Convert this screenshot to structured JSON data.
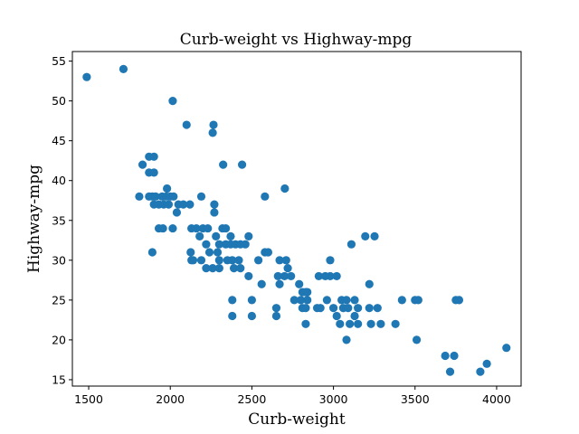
{
  "chart_data": {
    "type": "scatter",
    "title": "Curb-weight vs Highway-mpg",
    "xlabel": "Curb-weight",
    "ylabel": "Highway-mpg",
    "xlim": [
      1400,
      4150
    ],
    "ylim": [
      14.2,
      56.2
    ],
    "xticks": [
      1500,
      2000,
      2500,
      3000,
      3500,
      4000
    ],
    "yticks": [
      15,
      20,
      25,
      30,
      35,
      40,
      45,
      50,
      55
    ],
    "grid": false,
    "legend": "none",
    "marker_color": "#1f77b4",
    "points": [
      [
        1488,
        53
      ],
      [
        1713,
        54
      ],
      [
        2015,
        50
      ],
      [
        2100,
        47
      ],
      [
        2265,
        47
      ],
      [
        2260,
        46
      ],
      [
        2324,
        42
      ],
      [
        1830,
        42
      ],
      [
        1870,
        43
      ],
      [
        1900,
        43
      ],
      [
        2440,
        42
      ],
      [
        1870,
        41
      ],
      [
        1900,
        41
      ],
      [
        1810,
        38
      ],
      [
        1870,
        38
      ],
      [
        1890,
        38
      ],
      [
        1910,
        38
      ],
      [
        1950,
        38
      ],
      [
        1975,
        38
      ],
      [
        2000,
        38
      ],
      [
        2020,
        38
      ],
      [
        2190,
        38
      ],
      [
        2580,
        38
      ],
      [
        1900,
        37
      ],
      [
        1930,
        37
      ],
      [
        1960,
        37
      ],
      [
        1990,
        37
      ],
      [
        2050,
        37
      ],
      [
        2080,
        37
      ],
      [
        2120,
        37
      ],
      [
        2270,
        37
      ],
      [
        1980,
        39
      ],
      [
        2702,
        39
      ],
      [
        2040,
        36
      ],
      [
        2270,
        36
      ],
      [
        1930,
        34
      ],
      [
        1955,
        34
      ],
      [
        2015,
        34
      ],
      [
        2130,
        34
      ],
      [
        2160,
        34
      ],
      [
        2200,
        34
      ],
      [
        2230,
        34
      ],
      [
        2320,
        34
      ],
      [
        2340,
        34
      ],
      [
        2180,
        33
      ],
      [
        2280,
        33
      ],
      [
        2370,
        33
      ],
      [
        2480,
        33
      ],
      [
        3195,
        33
      ],
      [
        3252,
        33
      ],
      [
        2220,
        32
      ],
      [
        2300,
        32
      ],
      [
        2340,
        32
      ],
      [
        2370,
        32
      ],
      [
        2400,
        32
      ],
      [
        2430,
        32
      ],
      [
        2460,
        32
      ],
      [
        3110,
        32
      ],
      [
        1890,
        31
      ],
      [
        2125,
        31
      ],
      [
        2240,
        31
      ],
      [
        2290,
        31
      ],
      [
        2580,
        31
      ],
      [
        2600,
        31
      ],
      [
        2140,
        30
      ],
      [
        2190,
        30
      ],
      [
        2350,
        30
      ],
      [
        2380,
        30
      ],
      [
        2420,
        30
      ],
      [
        2540,
        30
      ],
      [
        2670,
        30
      ],
      [
        2710,
        30
      ],
      [
        2980,
        30
      ],
      [
        2130,
        30
      ],
      [
        2300,
        30
      ],
      [
        2220,
        29
      ],
      [
        2260,
        29
      ],
      [
        2300,
        29
      ],
      [
        2390,
        29
      ],
      [
        2430,
        29
      ],
      [
        2720,
        29
      ],
      [
        2480,
        28
      ],
      [
        2660,
        28
      ],
      [
        2700,
        28
      ],
      [
        2740,
        28
      ],
      [
        2910,
        28
      ],
      [
        2950,
        28
      ],
      [
        2980,
        28
      ],
      [
        3020,
        28
      ],
      [
        2560,
        27
      ],
      [
        2670,
        27
      ],
      [
        2790,
        27
      ],
      [
        3220,
        27
      ],
      [
        2810,
        26
      ],
      [
        2840,
        26
      ],
      [
        2830,
        26
      ],
      [
        2380,
        25
      ],
      [
        2500,
        25
      ],
      [
        2760,
        25
      ],
      [
        2800,
        25
      ],
      [
        2840,
        25
      ],
      [
        2960,
        25
      ],
      [
        3050,
        25
      ],
      [
        3080,
        25
      ],
      [
        3130,
        25
      ],
      [
        3420,
        25
      ],
      [
        3500,
        25
      ],
      [
        3520,
        25
      ],
      [
        3750,
        25
      ],
      [
        3770,
        25
      ],
      [
        2650,
        24
      ],
      [
        2810,
        24
      ],
      [
        2830,
        24
      ],
      [
        2900,
        24
      ],
      [
        2920,
        24
      ],
      [
        3000,
        24
      ],
      [
        3060,
        24
      ],
      [
        3090,
        24
      ],
      [
        3150,
        24
      ],
      [
        3220,
        24
      ],
      [
        3270,
        24
      ],
      [
        2380,
        23
      ],
      [
        2500,
        23
      ],
      [
        2650,
        23
      ],
      [
        3020,
        23
      ],
      [
        3130,
        23
      ],
      [
        2830,
        22
      ],
      [
        3040,
        22
      ],
      [
        3100,
        22
      ],
      [
        3150,
        22
      ],
      [
        3230,
        22
      ],
      [
        3290,
        22
      ],
      [
        3380,
        22
      ],
      [
        3080,
        20
      ],
      [
        3510,
        20
      ],
      [
        4060,
        19
      ],
      [
        3685,
        18
      ],
      [
        3740,
        18
      ],
      [
        3940,
        17
      ],
      [
        3715,
        16
      ],
      [
        3900,
        16
      ]
    ]
  }
}
